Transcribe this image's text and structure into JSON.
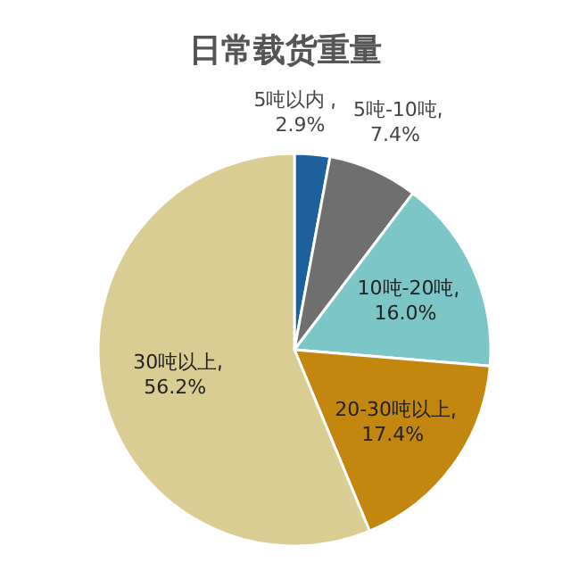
{
  "chart_data": {
    "type": "pie",
    "title": "日常载货重量",
    "categories": [
      "5吨以内",
      "5吨-10吨",
      "10吨-20吨",
      "20-30吨以上",
      "30吨以上"
    ],
    "values": [
      2.9,
      7.4,
      16.0,
      17.4,
      56.2
    ],
    "value_labels": [
      "2.9%",
      "7.4%",
      "16.0%",
      "17.4%",
      "56.2%"
    ],
    "colors": [
      "#1e5f9e",
      "#6f6f6f",
      "#7cc6c8",
      "#c3860e",
      "#d9cd93"
    ]
  }
}
